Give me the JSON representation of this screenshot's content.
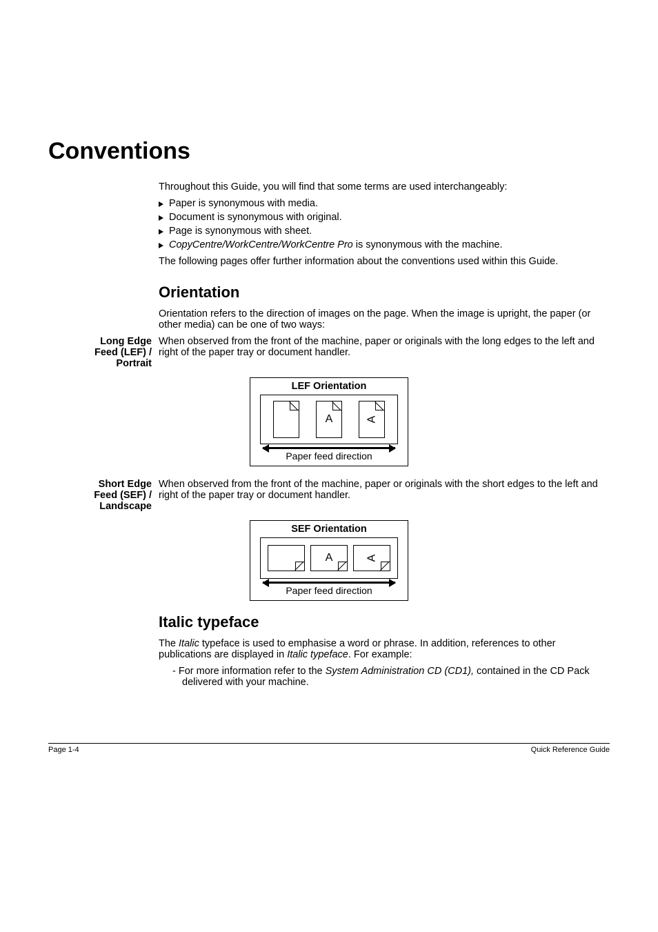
{
  "h1": "Conventions",
  "intro": "Throughout this Guide, you will find that some terms are used interchangeably:",
  "bullets": [
    "Paper is synonymous with media.",
    "Document is synonymous with original.",
    "Page is synonymous with sheet."
  ],
  "bullet_italic_prefix": "CopyCentre/WorkCentre/WorkCentre Pro",
  "bullet_italic_suffix": " is synonymous with the machine.",
  "post_bullets": "The following pages offer further information about the conventions used within this Guide.",
  "h2_orientation": "Orientation",
  "orientation_intro": "Orientation refers to the direction of images on the page. When the image is upright, the paper (or other media) can be one of two ways:",
  "lef": {
    "margin_l1": "Long Edge",
    "margin_l2": "Feed (LEF) /",
    "margin_l3": "Portrait",
    "text": "When observed from the front of the machine, paper or originals with the long edges to the left and right of the paper tray or document handler.",
    "diagram_title": "LEF Orientation",
    "letter": "A",
    "feed_label": "Paper feed direction"
  },
  "sef": {
    "margin_l1": "Short Edge",
    "margin_l2": "Feed (SEF) /",
    "margin_l3": "Landscape",
    "text": "When observed from the front of the machine, paper or originals with the short edges to the left and right of the paper tray or document handler.",
    "diagram_title": "SEF Orientation",
    "letter": "A",
    "feed_label": "Paper feed direction"
  },
  "h2_italic": "Italic typeface",
  "italic_intro_1": "The ",
  "italic_intro_em1": "Italic",
  "italic_intro_2": " typeface is used to emphasise a word or phrase. In addition, references to other publications are displayed in ",
  "italic_intro_em2": "Italic typeface",
  "italic_intro_3": ". For example:",
  "italic_item_1": "- For more information refer to the ",
  "italic_item_em": "System Administration CD (CD1),",
  "italic_item_2": " contained in the CD Pack delivered with your machine.",
  "footer_left": "Page 1-4",
  "footer_right": "Quick Reference Guide",
  "colors": {
    "text": "#000000",
    "bg": "#ffffff"
  },
  "fonts": {
    "body_pt": 14.5,
    "h1_pt": 34,
    "h2_pt": 22,
    "footer_pt": 11
  }
}
